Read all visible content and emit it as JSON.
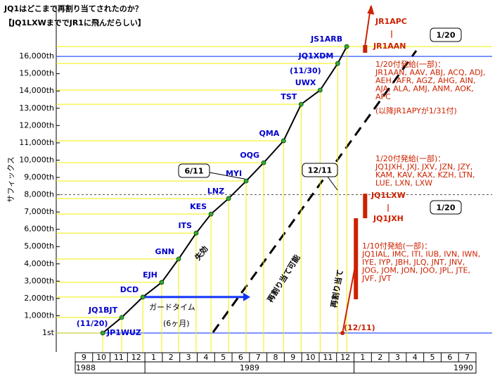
{
  "chart_data": {
    "type": "line",
    "title": "JQ1はどこまで再割り当てされたのか？",
    "subtitle": "【JQ1LXWまででJR1に飛んだらしい】",
    "y_label": "サフィックス",
    "xlim": [
      1988.6667,
      1990.5833
    ],
    "xticks": [
      {
        "value": 1988.7083,
        "label": "9"
      },
      {
        "value": 1988.7917,
        "label": "10"
      },
      {
        "value": 1988.875,
        "label": "11"
      },
      {
        "value": 1988.9583,
        "label": "12"
      },
      {
        "value": 1989.0417,
        "label": "1"
      },
      {
        "value": 1989.125,
        "label": "2"
      },
      {
        "value": 1989.2083,
        "label": "3"
      },
      {
        "value": 1989.2917,
        "label": "4"
      },
      {
        "value": 1989.375,
        "label": "5"
      },
      {
        "value": 1989.4583,
        "label": "6"
      },
      {
        "value": 1989.5417,
        "label": "7"
      },
      {
        "value": 1989.625,
        "label": "8"
      },
      {
        "value": 1989.7083,
        "label": "9"
      },
      {
        "value": 1989.7917,
        "label": "10"
      },
      {
        "value": 1989.875,
        "label": "11"
      },
      {
        "value": 1989.9583,
        "label": "12"
      },
      {
        "value": 1990.0417,
        "label": "1"
      },
      {
        "value": 1990.125,
        "label": "2"
      },
      {
        "value": 1990.2083,
        "label": "3"
      },
      {
        "value": 1990.2917,
        "label": "4"
      },
      {
        "value": 1990.375,
        "label": "5"
      },
      {
        "value": 1990.4583,
        "label": "6"
      },
      {
        "value": 1990.5417,
        "label": "7"
      }
    ],
    "year_labels": [
      "1988",
      "1989",
      "1990"
    ],
    "ylim": [
      -1100,
      19100
    ],
    "yticks": [
      {
        "value": 1,
        "label": "1st"
      },
      {
        "value": 1000,
        "label": "1,000th"
      },
      {
        "value": 2000,
        "label": "2,000th"
      },
      {
        "value": 3000,
        "label": "3,000th"
      },
      {
        "value": 4000,
        "label": "4,000th"
      },
      {
        "value": 5000,
        "label": "5,000th"
      },
      {
        "value": 6000,
        "label": "6,000th"
      },
      {
        "value": 7000,
        "label": "7,000th"
      },
      {
        "value": 8000,
        "label": "8,000th"
      },
      {
        "value": 9000,
        "label": "9,000th"
      },
      {
        "value": 10000,
        "label": "10,000th"
      },
      {
        "value": 11000,
        "label": "11,000th"
      },
      {
        "value": 12000,
        "label": "12,000th"
      },
      {
        "value": 13000,
        "label": "13,000th"
      },
      {
        "value": 14000,
        "label": "14,000th"
      },
      {
        "value": 15000,
        "label": "15,000th"
      },
      {
        "value": 16000,
        "label": "16,000th"
      }
    ],
    "x": [
      1988.798,
      1988.889,
      1988.99,
      1989.08,
      1989.161,
      1989.245,
      1989.316,
      1989.4,
      1989.484,
      1989.568,
      1989.663,
      1989.747,
      1989.838,
      1989.922,
      1989.965
    ],
    "values": [
      0,
      900,
      2080,
      2930,
      4280,
      5780,
      6880,
      7780,
      8790,
      9850,
      11120,
      13230,
      14050,
      15590,
      16570
    ],
    "labels": [
      "JP1WUZ",
      "JQ1BJT",
      "DCD",
      "EJH",
      "GNN",
      "ITS",
      "KES",
      "LNZ",
      "MYI",
      "OQG",
      "QMA",
      "TST",
      "UWX",
      "JQ1XDM",
      "JS1ARB"
    ],
    "line_color": "#000000",
    "marker_color": "#33aa33",
    "guide_color": "#f0f000",
    "label_color": "#0000cc",
    "reassign_color": "#cc2200",
    "date_notes": [
      "(11/20)",
      "(11/30)",
      "6/11",
      "12/11"
    ],
    "reassign_line": {
      "x": [
        1989.945,
        1990.009
      ],
      "values": [
        1,
        4100
      ]
    },
    "reassign_arrow": {
      "x": [
        1990.053,
        1990.08
      ],
      "values": [
        16650,
        18900
      ]
    },
    "reassign_bars": {
      "x": [
        1990.009,
        1990.053,
        1990.053
      ],
      "low": [
        1950,
        6640,
        16210
      ],
      "high": [
        6640,
        8060,
        16660
      ]
    },
    "reassign_start": "(12/11)",
    "jr1_block": {
      "top": "JR1APC",
      "sep": "|",
      "bottom": "JR1AAN",
      "date": "1/20",
      "heading": "1/20付発給(一部)：",
      "lines": [
        "JR1AAN, AAV, ABJ, ACQ, ADJ,",
        "AEH, AFR, AGZ, AHG, AIN,",
        "AJA, ALA, AMJ, ANM, AOK,",
        "APC"
      ],
      "note": "(以降JR1APYが1/31付)"
    },
    "jxh_list": {
      "heading": "1/20付発給(一部)：",
      "lines": [
        "JQ1JXH, JXJ, JXV, JZN, JZY,",
        "KAM, KAV, KAX, KZH, LTN,",
        "LUE, LXN, LXW"
      ]
    },
    "lxw_block": {
      "top": "JQ1LXW",
      "sep": "|",
      "bottom": "JQ1JXH",
      "date": "1/20"
    },
    "jia_list": {
      "heading": "1/10付発給(一部)：",
      "lines": [
        "JQ1IAL, IMC, ITI, IUB, IVN, IWN,",
        "IYE, IYP, JBH, JLQ, JNT, JNV,",
        "JOG, JOM, JON, JOO, JPL, JTE,",
        "JVF, JVT"
      ]
    },
    "expired": "失効",
    "reassignable": "再割り当て可能",
    "reassigned": "再割り当て",
    "guard_time": [
      "ガードタイム",
      "(6ヶ月)"
    ]
  }
}
